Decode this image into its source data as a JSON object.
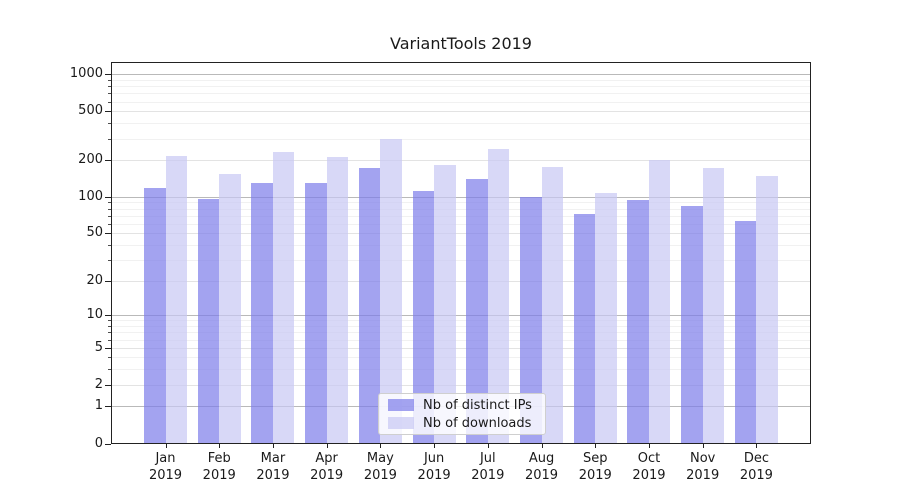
{
  "title": "VariantTools 2019",
  "chart_data": {
    "type": "bar",
    "title": "VariantTools 2019",
    "xlabel": "",
    "ylabel": "",
    "year": "2019",
    "months": [
      "Jan",
      "Feb",
      "Mar",
      "Apr",
      "May",
      "Jun",
      "Jul",
      "Aug",
      "Sep",
      "Oct",
      "Nov",
      "Dec"
    ],
    "series": [
      {
        "name": "Nb of distinct IPs",
        "color": "#7c7cea",
        "values": [
          118,
          96,
          130,
          130,
          171,
          111,
          140,
          100,
          73,
          95,
          84,
          63
        ]
      },
      {
        "name": "Nb of downloads",
        "color": "#c7c7f4",
        "values": [
          217,
          155,
          232,
          212,
          296,
          183,
          247,
          177,
          108,
          201,
          173,
          149
        ]
      }
    ],
    "y_scale": "log1p",
    "y_ticks": [
      1000,
      500,
      200,
      100,
      50,
      20,
      10,
      5,
      2,
      1,
      0
    ],
    "y_minor_gridlines": [
      3,
      4,
      6,
      7,
      8,
      9,
      30,
      40,
      60,
      70,
      80,
      90,
      300,
      400,
      600,
      700,
      800,
      900
    ],
    "ylim": [
      0,
      1250
    ],
    "grid": true,
    "legend_position": "lower center"
  }
}
